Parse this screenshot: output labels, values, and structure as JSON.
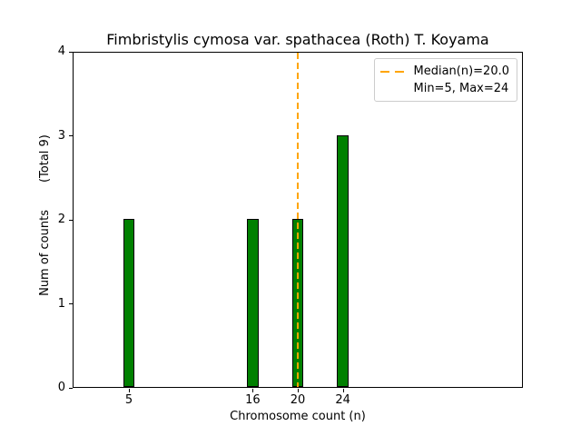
{
  "figure": {
    "title": "Fimbristylis cymosa var. spathacea (Roth) T. Koyama",
    "xlabel": "Chromosome count (n)",
    "ylabel": "Num of counts",
    "ylabel_note": "(Total 9)",
    "legend": {
      "position": "upper right",
      "entries": [
        {
          "label": "Median(n)=20.0",
          "swatch": "orange-dashed-line"
        },
        {
          "label": "Min=5, Max=24",
          "swatch": "none"
        }
      ]
    }
  },
  "chart_data": {
    "type": "bar",
    "title": "Fimbristylis cymosa var. spathacea (Roth) T. Koyama",
    "xlabel": "Chromosome count (n)",
    "ylabel": "Num of counts (Total 9)",
    "x": [
      5,
      16,
      20,
      24
    ],
    "values": [
      2,
      2,
      2,
      3
    ],
    "bar_width": 1,
    "total_counts": 9,
    "median_n": 20.0,
    "min_n": 5,
    "max_n": 24,
    "xlim": [
      0,
      40
    ],
    "ylim": [
      0,
      4
    ],
    "xticks": [
      5,
      16,
      20,
      24
    ],
    "yticks": [
      0,
      1,
      2,
      3,
      4
    ],
    "grid": false,
    "legend_position": "upper right",
    "median_line_style": "dashed",
    "colors": {
      "bar_fill": "#008000",
      "bar_edge": "#000000",
      "median_line": "#FFA500",
      "axis": "#000000",
      "legend_border": "#cccccc",
      "background": "#ffffff"
    }
  }
}
